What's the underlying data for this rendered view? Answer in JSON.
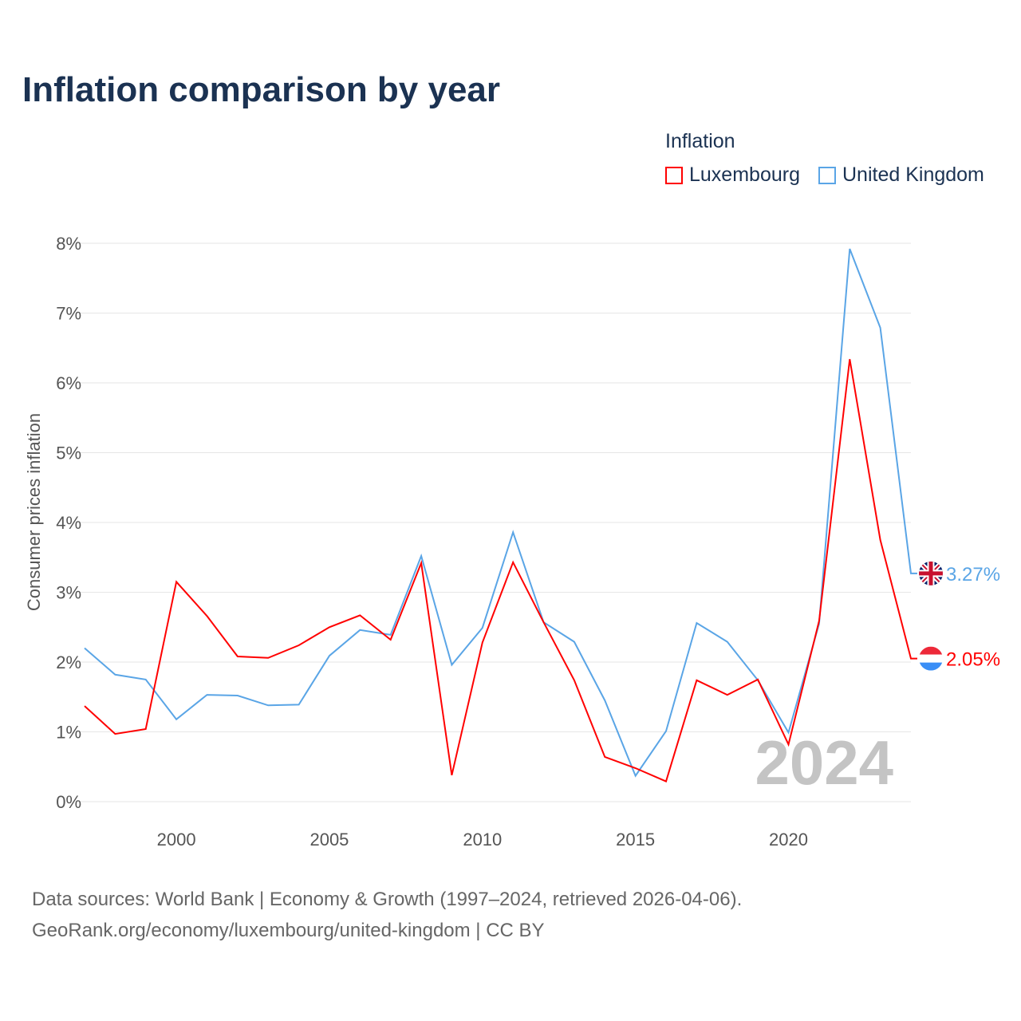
{
  "title": "Inflation comparison by year",
  "legend": {
    "title": "Inflation",
    "items": [
      {
        "name": "Luxembourg",
        "color": "#ff0000"
      },
      {
        "name": "United Kingdom",
        "color": "#5aa5e6"
      }
    ]
  },
  "source": {
    "line1": "Data sources: World Bank | Economy & Growth (1997–2024, retrieved 2026-04-06).",
    "line2": "GeoRank.org/economy/luxembourg/united-kingdom | CC BY"
  },
  "chart_data": {
    "type": "line",
    "title": "Inflation comparison by year",
    "xlabel": "",
    "ylabel": "Consumer prices inflation",
    "x": [
      1997,
      1998,
      1999,
      2000,
      2001,
      2002,
      2003,
      2004,
      2005,
      2006,
      2007,
      2008,
      2009,
      2010,
      2011,
      2012,
      2013,
      2014,
      2015,
      2016,
      2017,
      2018,
      2019,
      2020,
      2021,
      2022,
      2023,
      2024
    ],
    "xticks": [
      "2000",
      "2005",
      "2010",
      "2015",
      "2020"
    ],
    "yticks": [
      "0%",
      "1%",
      "2%",
      "3%",
      "4%",
      "5%",
      "6%",
      "7%",
      "8%"
    ],
    "ylim": [
      0,
      8
    ],
    "grid": true,
    "year_watermark": "2024",
    "series": [
      {
        "name": "Luxembourg",
        "color": "#ff0000",
        "end_label": "2.05%",
        "values": [
          1.37,
          0.97,
          1.04,
          3.15,
          2.66,
          2.08,
          2.06,
          2.24,
          2.5,
          2.67,
          2.32,
          3.42,
          0.38,
          2.28,
          3.43,
          2.57,
          1.74,
          0.64,
          0.48,
          0.29,
          1.74,
          1.53,
          1.75,
          0.82,
          2.59,
          6.34,
          3.75,
          2.05
        ]
      },
      {
        "name": "United Kingdom",
        "color": "#5aa5e6",
        "end_label": "3.27%",
        "values": [
          2.2,
          1.82,
          1.75,
          1.18,
          1.53,
          1.52,
          1.38,
          1.39,
          2.09,
          2.46,
          2.39,
          3.52,
          1.96,
          2.49,
          3.86,
          2.57,
          2.29,
          1.45,
          0.37,
          1.01,
          2.56,
          2.29,
          1.74,
          0.99,
          2.55,
          7.92,
          6.79,
          3.27
        ]
      }
    ]
  }
}
